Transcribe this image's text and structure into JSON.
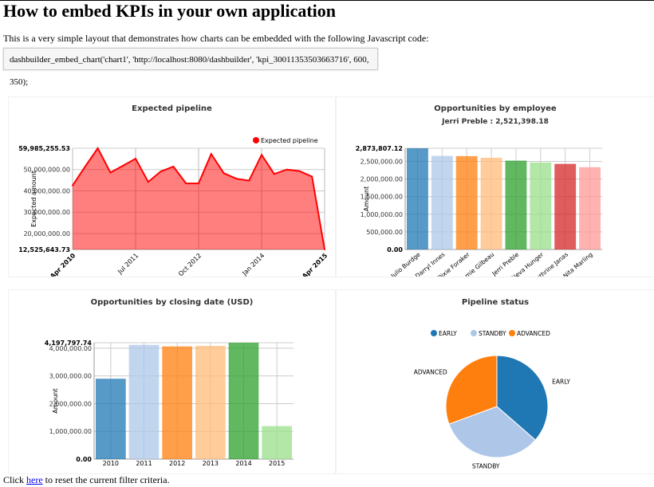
{
  "page": {
    "title": "How to embed KPIs in your own application",
    "intro": "This is a very simple layout that demonstrates how charts can be embedded with the following Javascript code:",
    "code": "dashbuilder_embed_chart('chart1', 'http://localhost:8080/dashbuilder', 'kpi_30011353503663716', 600, 350);",
    "footer_pre": "Click ",
    "footer_link": "here",
    "footer_post": " to reset the current filter criteria."
  },
  "chart_data": [
    {
      "type": "area",
      "title": "Expected pipeline",
      "ylabel": "Expected amount",
      "legend": [
        "Expected pipeline"
      ],
      "legend_position": "top-right",
      "color": "#ff0000",
      "ylim": [
        12525643.73,
        59985255.53
      ],
      "yticks": [
        "12,525,643.73",
        "20,000,000.00",
        "30,000,000.00",
        "40,000,000.00",
        "50,000,000.00",
        "59,985,255.53"
      ],
      "xticks": [
        "Apr 2010",
        "Jul 2011",
        "Oct 2012",
        "Jan 2014",
        "Apr 2015"
      ],
      "x": [
        "2010-04",
        "2010-07",
        "2010-10",
        "2011-01",
        "2011-04",
        "2011-07",
        "2011-10",
        "2012-01",
        "2012-04",
        "2012-07",
        "2012-10",
        "2013-01",
        "2013-04",
        "2013-07",
        "2013-10",
        "2014-01",
        "2014-04",
        "2014-07",
        "2014-10",
        "2015-01",
        "2015-04"
      ],
      "values": [
        42500000,
        51400000,
        59985255.53,
        48600000,
        51800000,
        55100000,
        44200000,
        49100000,
        51400000,
        43500000,
        43500000,
        57300000,
        48300000,
        45700000,
        44800000,
        56900000,
        47900000,
        50000000,
        49300000,
        46700000,
        12525643.73
      ],
      "grid": true
    },
    {
      "type": "bar",
      "title": "Opportunities by employee",
      "subtitle": "Jerri Preble : 2,521,398.18",
      "ylabel": "Amount",
      "ylim": [
        0,
        2873807.12
      ],
      "yticks": [
        "0.00",
        "500,000.00",
        "1,000,000.00",
        "1,500,000.00",
        "2,000,000.00",
        "2,500,000.00",
        "2,873,807.12"
      ],
      "categories": [
        "Julio Burdge",
        "Darryl Innes",
        "Dixie Foraker",
        "Jamie Gilbeau",
        "Jerri Preble",
        "Neva Hunger",
        "Kathrine Janas",
        "Nita Marling"
      ],
      "values": [
        2873807.12,
        2657000,
        2650000,
        2605000,
        2521398.18,
        2470000,
        2430000,
        2335000
      ],
      "colors": [
        "#1f77b4",
        "#aec7e8",
        "#ff7f0e",
        "#ffbb78",
        "#2ca02c",
        "#98df8a",
        "#d62728",
        "#ff9896"
      ],
      "grid": true
    },
    {
      "type": "bar",
      "title": "Opportunities by closing date (USD)",
      "ylabel": "Amount",
      "ylim": [
        0,
        4197797.74
      ],
      "yticks": [
        "0.00",
        "1,000,000.00",
        "2,000,000.00",
        "3,000,000.00",
        "4,000,000.00",
        "4,197,797.74"
      ],
      "categories": [
        "2010",
        "2011",
        "2012",
        "2013",
        "2014",
        "2015"
      ],
      "values": [
        2900000,
        4120000,
        4065000,
        4085000,
        4197797.74,
        1190000
      ],
      "colors": [
        "#1f77b4",
        "#aec7e8",
        "#ff7f0e",
        "#ffbb78",
        "#2ca02c",
        "#98df8a"
      ],
      "grid": true
    },
    {
      "type": "pie",
      "title": "Pipeline status",
      "legend_position": "top",
      "categories": [
        "EARLY",
        "STANDBY",
        "ADVANCED"
      ],
      "values": [
        36.4,
        33.0,
        30.6
      ],
      "colors": [
        "#1f77b4",
        "#aec7e8",
        "#ff7f0e"
      ]
    }
  ]
}
